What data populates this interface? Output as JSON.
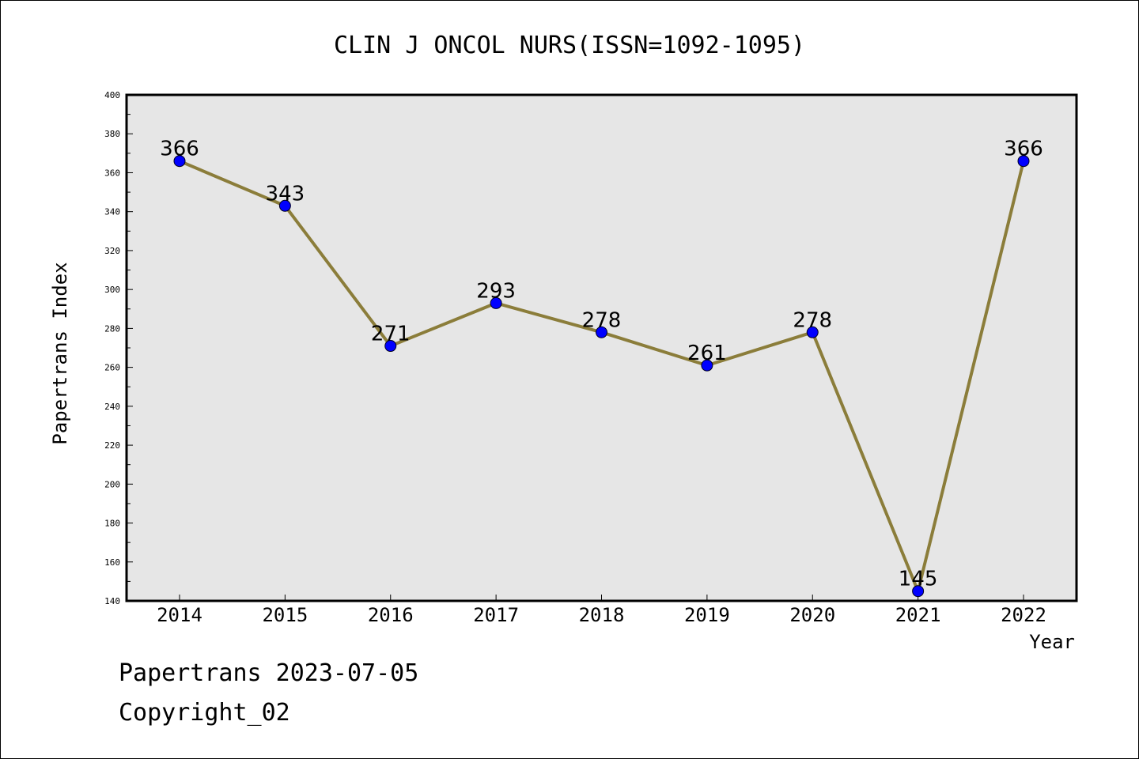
{
  "chart_data": {
    "type": "line",
    "title": "CLIN J ONCOL NURS(ISSN=1092-1095)",
    "xlabel": "Year",
    "ylabel": "Papertrans Index",
    "categories": [
      "2014",
      "2015",
      "2016",
      "2017",
      "2018",
      "2019",
      "2020",
      "2021",
      "2022"
    ],
    "series": [
      {
        "values": [
          366,
          343,
          271,
          293,
          278,
          261,
          278,
          145,
          366
        ]
      }
    ],
    "data_labels": [
      "366",
      "343",
      "271",
      "293",
      "278",
      "261",
      "278",
      "145",
      "366"
    ],
    "ylim": [
      140,
      400
    ],
    "yticks": [
      "140",
      "160",
      "180",
      "200",
      "220",
      "240",
      "260",
      "280",
      "300",
      "320",
      "340",
      "360",
      "380",
      "400"
    ],
    "grid": false,
    "colors": {
      "plot_background": "#e6e6e6",
      "line": "#8b7d3a",
      "marker": "#0000ff"
    }
  },
  "footer": {
    "date_line": "Papertrans 2023-07-05",
    "copyright_line": "Copyright_02"
  }
}
